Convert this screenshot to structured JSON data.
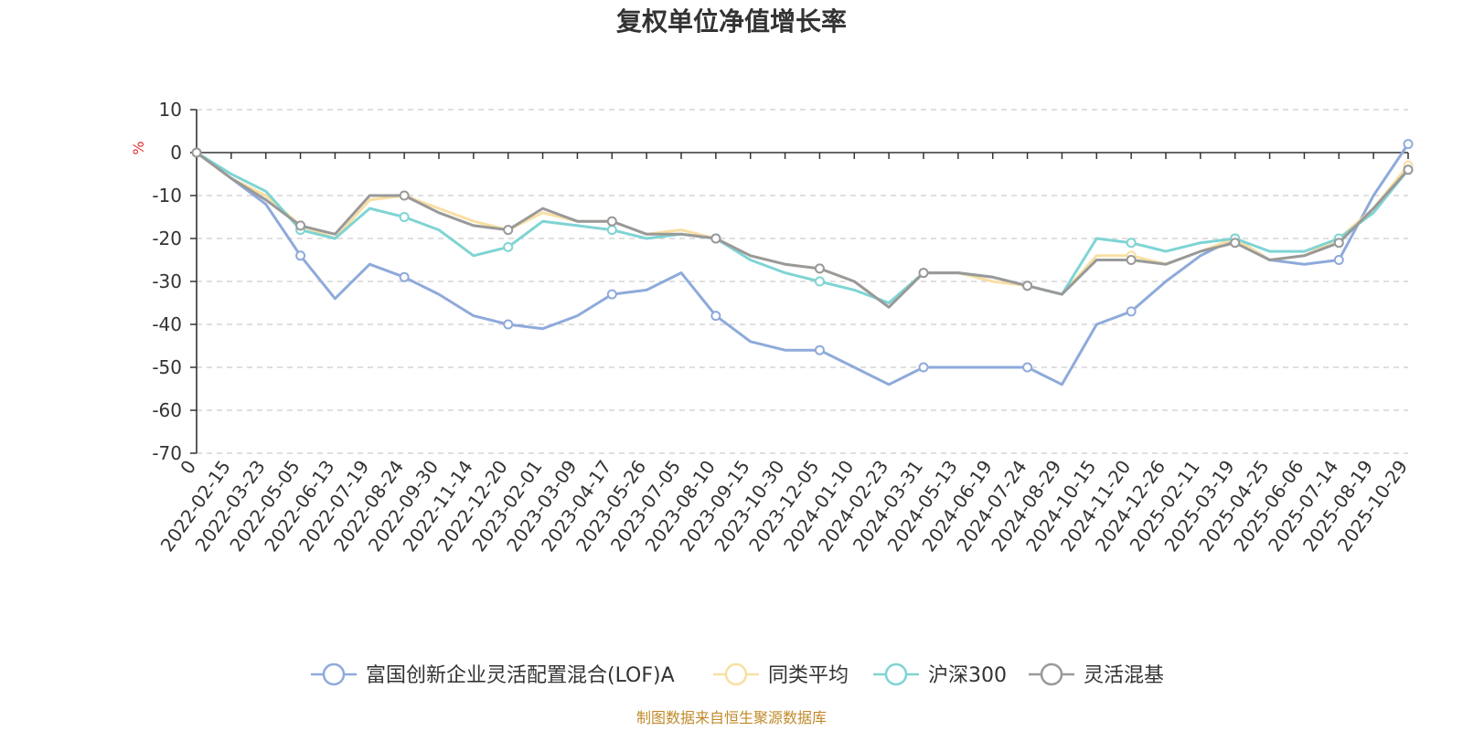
{
  "chart_data": {
    "type": "line",
    "title": "复权单位净值增长率",
    "ylabel": "%",
    "ylim": [
      -70,
      10
    ],
    "yticks": [
      10,
      0,
      -10,
      -20,
      -30,
      -40,
      -50,
      -60,
      -70
    ],
    "xlabel": "",
    "categories": [
      "0",
      "2022-02-15",
      "2022-03-23",
      "2022-05-05",
      "2022-06-13",
      "2022-07-19",
      "2022-08-24",
      "2022-09-30",
      "2022-11-14",
      "2022-12-20",
      "2023-02-01",
      "2023-03-09",
      "2023-04-17",
      "2023-05-26",
      "2023-07-05",
      "2023-08-10",
      "2023-09-15",
      "2023-10-30",
      "2023-12-05",
      "2024-01-10",
      "2024-02-23",
      "2024-03-31",
      "2024-05-13",
      "2024-06-19",
      "2024-07-24",
      "2024-08-29",
      "2024-10-15",
      "2024-11-20",
      "2024-12-26",
      "2025-02-11",
      "2025-03-19",
      "2025-04-25",
      "2025-06-06",
      "2025-07-14",
      "2025-08-19",
      "2025-10-29"
    ],
    "series": [
      {
        "name": "富国创新企业灵活配置混合(LOF)A",
        "color": "#8eaadb",
        "values": [
          0,
          -6,
          -12,
          -24,
          -34,
          -26,
          -29,
          -33,
          -38,
          -40,
          -41,
          -38,
          -33,
          -32,
          -28,
          -38,
          -44,
          -46,
          -46,
          -50,
          -54,
          -50,
          -50,
          -50,
          -50,
          -54,
          -40,
          -37,
          -30,
          -24,
          -20,
          -25,
          -26,
          -25,
          -10,
          2
        ]
      },
      {
        "name": "同类平均",
        "color": "#f9dfa3",
        "values": [
          0,
          -6,
          -10,
          -17,
          -20,
          -11,
          -10,
          -13,
          -16,
          -18,
          -14,
          -16,
          -16,
          -19,
          -18,
          -20,
          -24,
          -26,
          -27,
          -30,
          -36,
          -28,
          -28,
          -30,
          -31,
          -33,
          -24,
          -24,
          -26,
          -23,
          -20,
          -25,
          -24,
          -20,
          -13,
          -3
        ]
      },
      {
        "name": "沪深300",
        "color": "#7fd4d4",
        "values": [
          0,
          -5,
          -9,
          -18,
          -20,
          -13,
          -15,
          -18,
          -24,
          -22,
          -16,
          -17,
          -18,
          -20,
          -19,
          -20,
          -25,
          -28,
          -30,
          -32,
          -35,
          -28,
          -28,
          -29,
          -31,
          -33,
          -20,
          -21,
          -23,
          -21,
          -20,
          -23,
          -23,
          -20,
          -14,
          -4
        ]
      },
      {
        "name": "灵活混基",
        "color": "#999999",
        "values": [
          0,
          -6,
          -11,
          -17,
          -19,
          -10,
          -10,
          -14,
          -17,
          -18,
          -13,
          -16,
          -16,
          -19,
          -19,
          -20,
          -24,
          -26,
          -27,
          -30,
          -36,
          -28,
          -28,
          -29,
          -31,
          -33,
          -25,
          -25,
          -26,
          -23,
          -21,
          -25,
          -24,
          -21,
          -13,
          -4
        ]
      }
    ],
    "legend_position": "bottom",
    "grid": true,
    "source": "制图数据来自恒生聚源数据库"
  }
}
